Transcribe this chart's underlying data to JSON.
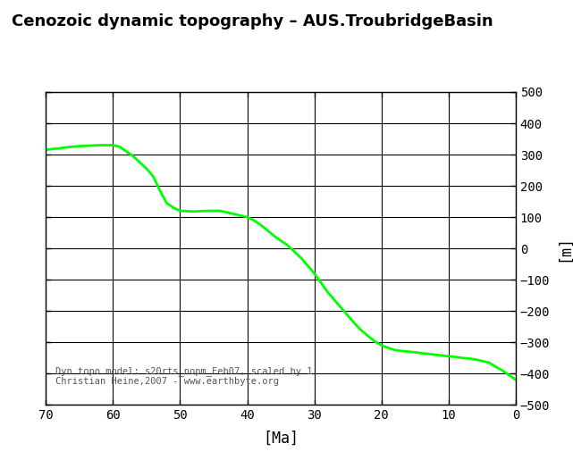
{
  "title": "Cenozoic dynamic topography – AUS.TroubridgeBasin",
  "xlabel": "[Ma]",
  "ylabel": "[m]",
  "annotation_line1": "Dyn topo model: s20rts_nopm_Feb07, scaled by 1",
  "annotation_line2": "Christian Heine,2007 - www.earthbyte.org",
  "line_color": "#00ff00",
  "background_color": "#ffffff",
  "xlim": [
    70,
    0
  ],
  "ylim": [
    -500,
    500
  ],
  "xticks": [
    70,
    60,
    50,
    40,
    30,
    20,
    10,
    0
  ],
  "yticks": [
    -500,
    -400,
    -300,
    -200,
    -100,
    0,
    100,
    200,
    300,
    400,
    500
  ],
  "x": [
    70,
    69,
    68,
    67,
    66,
    65,
    64,
    63,
    62,
    61,
    60,
    59,
    58,
    57,
    56,
    55,
    54,
    53,
    52,
    51,
    50,
    49,
    48,
    47,
    46,
    45,
    44,
    43,
    42,
    41,
    40,
    39,
    38,
    37,
    36,
    35,
    34,
    33,
    32,
    31,
    30,
    29,
    28,
    27,
    26,
    25,
    24,
    23,
    22,
    21,
    20,
    19,
    18,
    17,
    16,
    15,
    14,
    13,
    12,
    11,
    10,
    9,
    8,
    7,
    6,
    5,
    4,
    3,
    2,
    1,
    0
  ],
  "y": [
    315,
    318,
    320,
    323,
    325,
    327,
    328,
    329,
    330,
    330,
    330,
    325,
    310,
    295,
    275,
    255,
    230,
    185,
    145,
    130,
    120,
    119,
    118,
    119,
    120,
    120,
    120,
    115,
    110,
    105,
    100,
    90,
    75,
    58,
    40,
    25,
    10,
    -10,
    -30,
    -55,
    -80,
    -110,
    -140,
    -165,
    -190,
    -215,
    -240,
    -262,
    -280,
    -297,
    -310,
    -318,
    -325,
    -328,
    -330,
    -332,
    -335,
    -337,
    -340,
    -342,
    -345,
    -347,
    -350,
    -352,
    -355,
    -360,
    -365,
    -378,
    -390,
    -405,
    -420
  ]
}
